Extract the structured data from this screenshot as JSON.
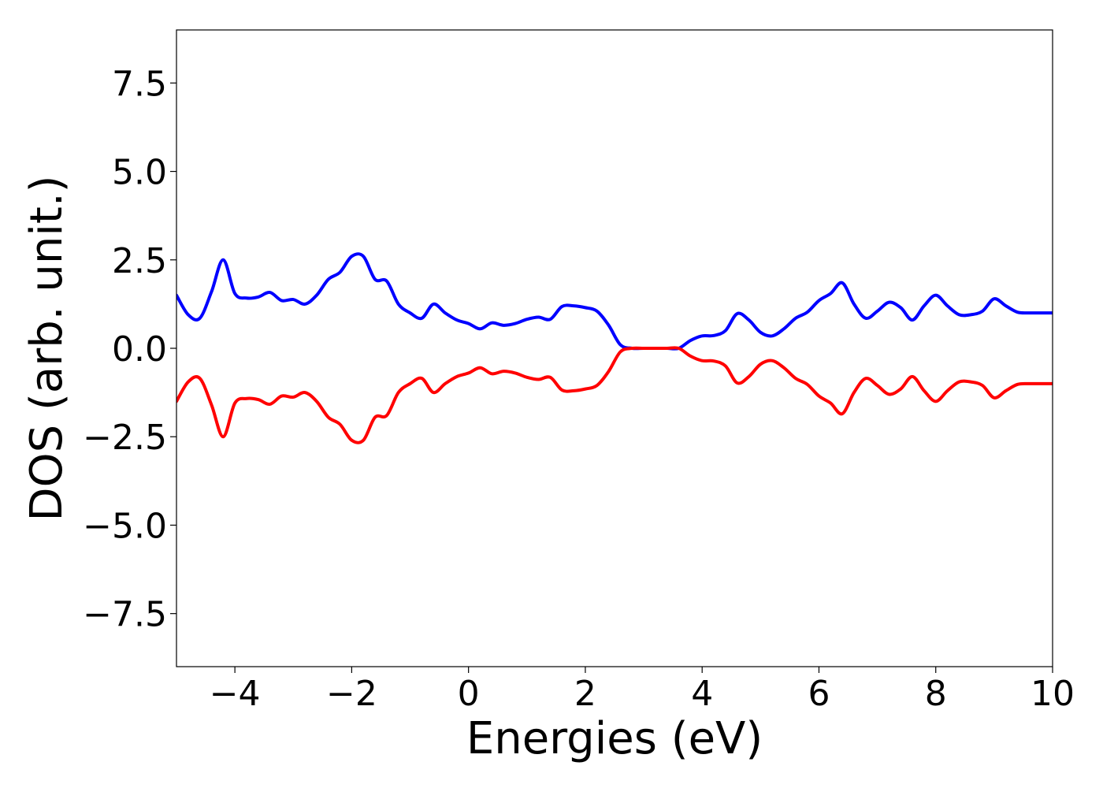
{
  "chart_data": {
    "type": "line",
    "title": "",
    "xlabel": "Energies (eV)",
    "ylabel": "DOS (arb. unit.)",
    "xlim": [
      -5,
      10
    ],
    "ylim": [
      -9,
      9
    ],
    "x_ticks": [
      {
        "value": -4,
        "label": "−4"
      },
      {
        "value": -2,
        "label": "−2"
      },
      {
        "value": 0,
        "label": "0"
      },
      {
        "value": 2,
        "label": "2"
      },
      {
        "value": 4,
        "label": "4"
      },
      {
        "value": 6,
        "label": "6"
      },
      {
        "value": 8,
        "label": "8"
      },
      {
        "value": 10,
        "label": "10"
      }
    ],
    "y_ticks": [
      {
        "value": 7.5,
        "label": "7.5"
      },
      {
        "value": 5.0,
        "label": "5.0"
      },
      {
        "value": 2.5,
        "label": "2.5"
      },
      {
        "value": 0.0,
        "label": "0.0"
      },
      {
        "value": -2.5,
        "label": "−2.5"
      },
      {
        "value": -5.0,
        "label": "−5.0"
      },
      {
        "value": -7.5,
        "label": "−7.5"
      }
    ],
    "grid": false,
    "legend": "none",
    "x": [
      -5.0,
      -4.8,
      -4.6,
      -4.4,
      -4.2,
      -4.0,
      -3.8,
      -3.6,
      -3.4,
      -3.2,
      -3.0,
      -2.8,
      -2.6,
      -2.4,
      -2.2,
      -2.0,
      -1.8,
      -1.6,
      -1.4,
      -1.2,
      -1.0,
      -0.8,
      -0.6,
      -0.4,
      -0.2,
      0.0,
      0.2,
      0.4,
      0.6,
      0.8,
      1.0,
      1.2,
      1.4,
      1.6,
      1.8,
      2.0,
      2.2,
      2.4,
      2.6,
      2.8,
      3.0,
      3.2,
      3.4,
      3.6,
      3.8,
      4.0,
      4.2,
      4.4,
      4.6,
      4.8,
      5.0,
      5.2,
      5.4,
      5.6,
      5.8,
      6.0,
      6.2,
      6.4,
      6.6,
      6.8,
      7.0,
      7.2,
      7.4,
      7.6,
      7.8,
      8.0,
      8.2,
      8.4,
      8.6,
      8.8,
      9.0,
      9.2,
      9.4,
      9.6,
      9.8,
      10.0
    ],
    "series": [
      {
        "color": "#0000ff",
        "values": [
          1.5,
          0.95,
          0.85,
          1.6,
          2.5,
          1.55,
          1.42,
          1.45,
          1.58,
          1.35,
          1.38,
          1.25,
          1.5,
          1.95,
          2.15,
          2.6,
          2.6,
          1.95,
          1.9,
          1.25,
          1.0,
          0.85,
          1.25,
          1.0,
          0.8,
          0.7,
          0.55,
          0.72,
          0.65,
          0.7,
          0.82,
          0.88,
          0.82,
          1.18,
          1.2,
          1.15,
          1.05,
          0.65,
          0.1,
          0.0,
          0.0,
          0.0,
          0.0,
          0.0,
          0.22,
          0.35,
          0.36,
          0.5,
          0.98,
          0.8,
          0.45,
          0.35,
          0.55,
          0.85,
          1.02,
          1.35,
          1.55,
          1.85,
          1.25,
          0.85,
          1.05,
          1.3,
          1.15,
          0.8,
          1.2,
          1.5,
          1.2,
          0.95,
          0.95,
          1.05,
          1.4,
          1.2,
          1.02,
          1.0,
          1.0,
          1.0
        ]
      },
      {
        "color": "#ff0000",
        "values": [
          -1.5,
          -0.95,
          -0.85,
          -1.6,
          -2.5,
          -1.55,
          -1.42,
          -1.45,
          -1.58,
          -1.35,
          -1.38,
          -1.25,
          -1.5,
          -1.95,
          -2.15,
          -2.6,
          -2.6,
          -1.95,
          -1.9,
          -1.25,
          -1.0,
          -0.85,
          -1.25,
          -1.0,
          -0.8,
          -0.7,
          -0.55,
          -0.72,
          -0.65,
          -0.7,
          -0.82,
          -0.88,
          -0.82,
          -1.18,
          -1.2,
          -1.15,
          -1.05,
          -0.65,
          -0.1,
          0.0,
          0.0,
          0.0,
          0.0,
          0.0,
          -0.22,
          -0.35,
          -0.36,
          -0.5,
          -0.98,
          -0.8,
          -0.45,
          -0.35,
          -0.55,
          -0.85,
          -1.02,
          -1.35,
          -1.55,
          -1.85,
          -1.25,
          -0.85,
          -1.05,
          -1.3,
          -1.15,
          -0.8,
          -1.2,
          -1.5,
          -1.2,
          -0.95,
          -0.95,
          -1.05,
          -1.4,
          -1.2,
          -1.02,
          -1.0,
          -1.0,
          -1.0
        ]
      }
    ]
  }
}
